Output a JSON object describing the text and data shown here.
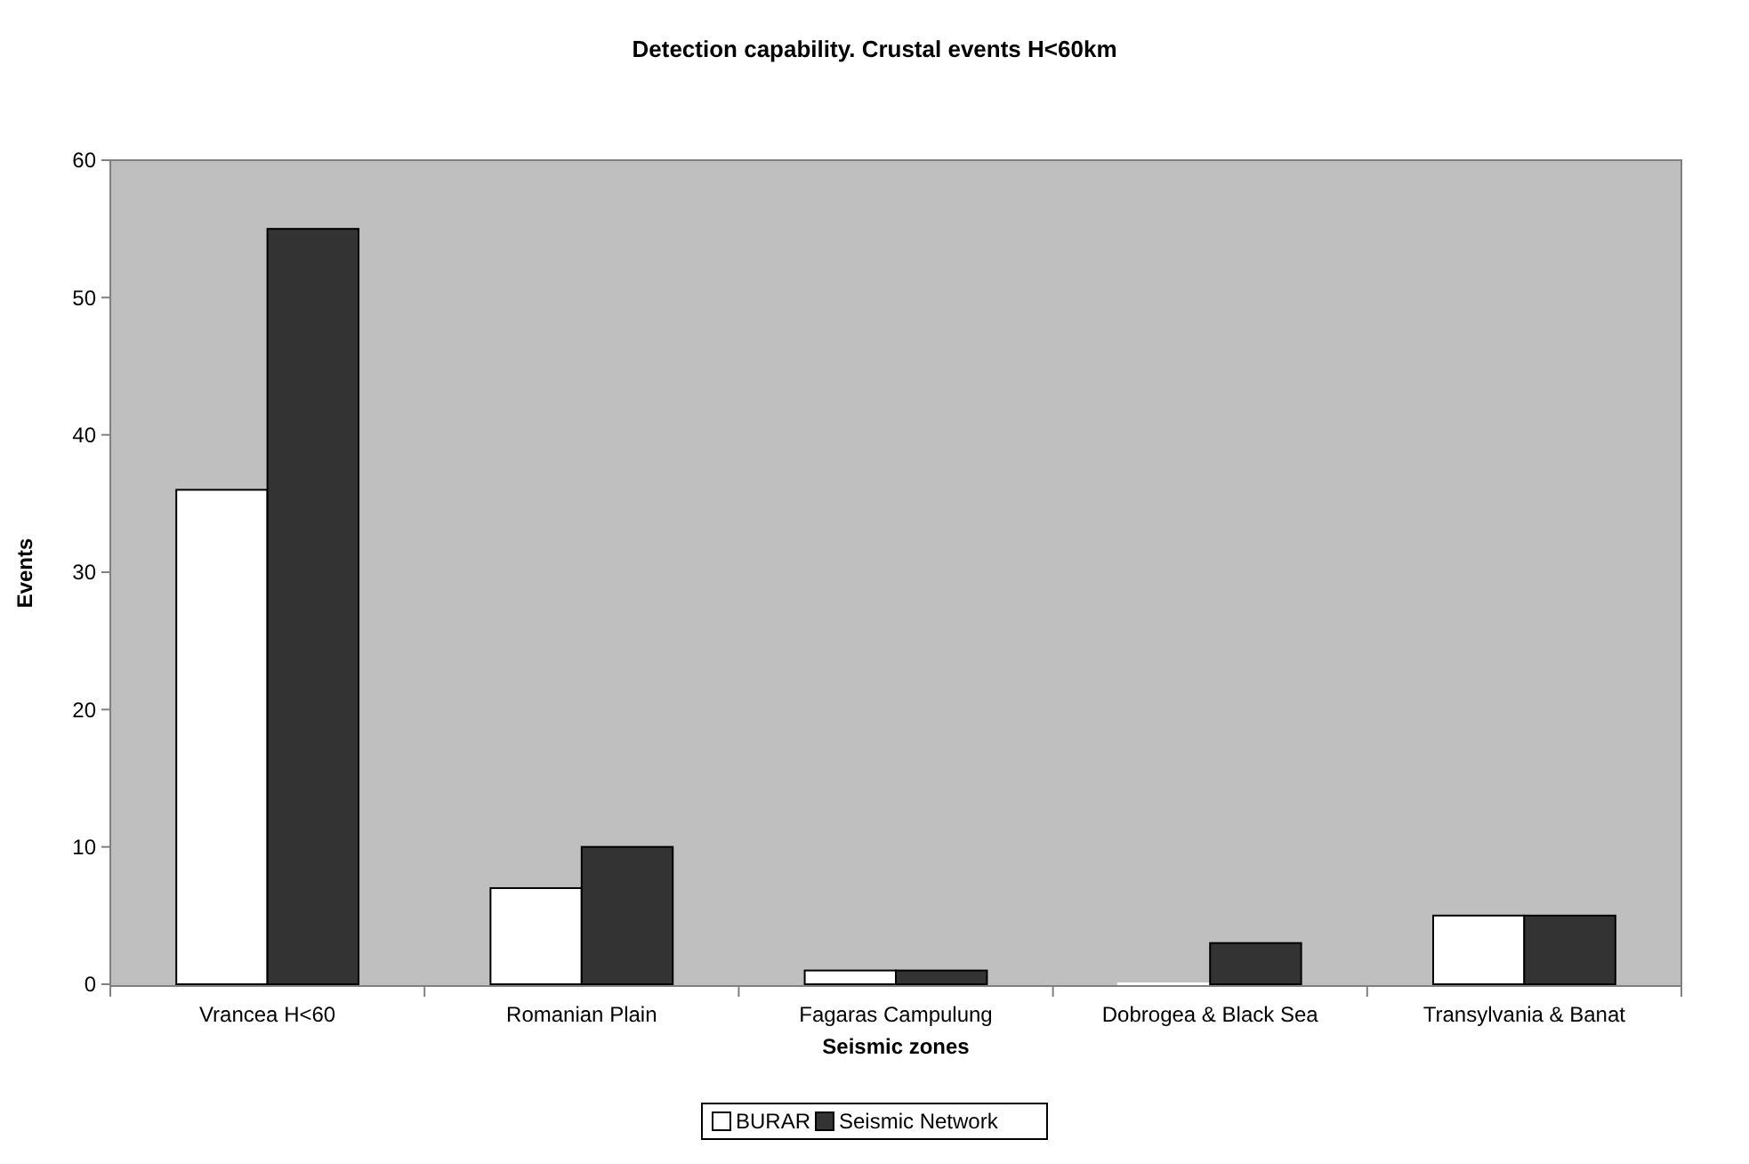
{
  "chart_data": {
    "type": "bar",
    "title": "Detection capability. Crustal events H<60km",
    "xlabel": "Seismic zones",
    "ylabel": "Events",
    "categories": [
      "Vrancea H<60",
      "Romanian Plain",
      "Fagaras Campulung",
      "Dobrogea & Black Sea",
      "Transylvania & Banat"
    ],
    "series": [
      {
        "name": "BURAR",
        "color": "#ffffff",
        "values": [
          36,
          7,
          1,
          0,
          5
        ]
      },
      {
        "name": "Seismic Network",
        "color": "#333333",
        "values": [
          55,
          10,
          1,
          3,
          5
        ]
      }
    ],
    "ylim": [
      0,
      60
    ],
    "yticks": [
      0,
      10,
      20,
      30,
      40,
      50,
      60
    ],
    "legend": "bottom"
  }
}
